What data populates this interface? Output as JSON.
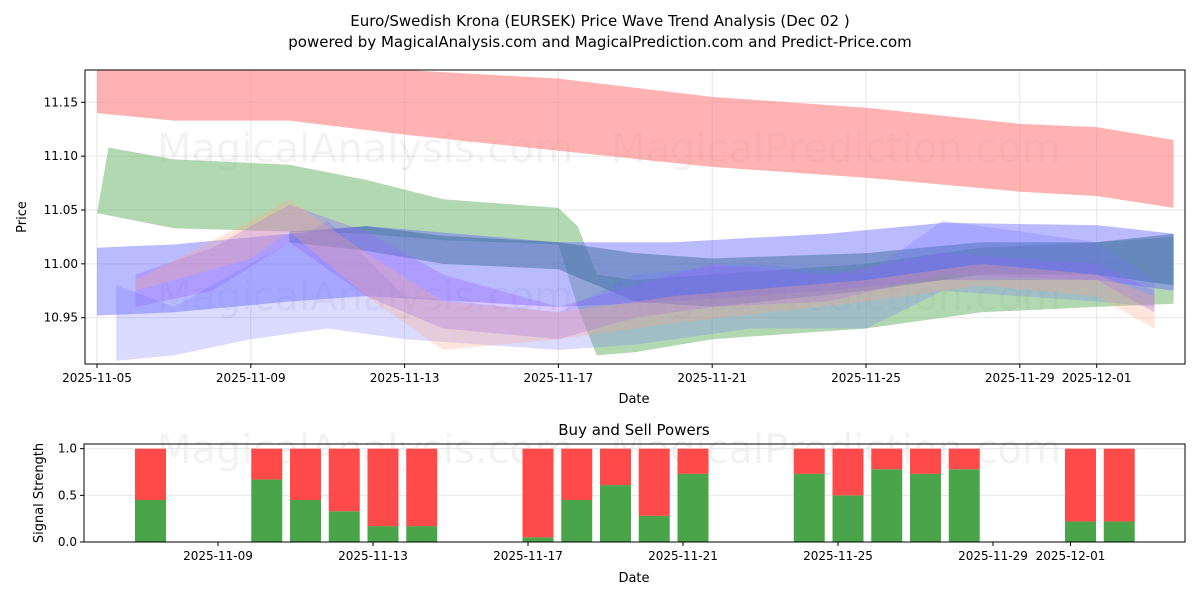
{
  "title": "Euro/Swedish Krona (EURSEK) Price Wave Trend Analysis (Dec 02 )",
  "subtitle": "powered by MagicalAnalysis.com and MagicalPrediction.com and Predict-Price.com",
  "watermarks": [
    "MagicalAnalysis.com",
    "MagicalPrediction.com"
  ],
  "chart_data": [
    {
      "type": "area",
      "title": "",
      "xlabel": "Date",
      "ylabel": "Price",
      "xlim": [
        "2025-11-04.7",
        "2025-12-03.3"
      ],
      "ylim": [
        10.907,
        11.18
      ],
      "x_ticks": [
        "2025-11-05",
        "2025-11-09",
        "2025-11-13",
        "2025-11-17",
        "2025-11-21",
        "2025-11-25",
        "2025-11-29",
        "2025-12-01"
      ],
      "y_ticks": [
        "10.95",
        "11.00",
        "11.05",
        "11.10",
        "11.15"
      ],
      "grid": true,
      "bands": [
        {
          "name": "red-band",
          "color": "#ff7f7f",
          "opacity": 0.6,
          "x": [
            "2025-11-05",
            "2025-11-07",
            "2025-11-10",
            "2025-11-13",
            "2025-11-17",
            "2025-11-21",
            "2025-11-25",
            "2025-11-29",
            "2025-12-01",
            "2025-12-03"
          ],
          "upper": [
            11.185,
            11.185,
            11.185,
            11.18,
            11.172,
            11.155,
            11.145,
            11.13,
            11.127,
            11.115
          ],
          "lower": [
            11.14,
            11.133,
            11.133,
            11.12,
            11.105,
            11.09,
            11.08,
            11.067,
            11.063,
            11.052
          ]
        },
        {
          "name": "green-band",
          "color": "#66b266",
          "opacity": 0.5,
          "x": [
            "2025-11-05",
            "2025-11-05.3",
            "2025-11-07",
            "2025-11-10",
            "2025-11-12",
            "2025-11-14",
            "2025-11-17",
            "2025-11-17.5",
            "2025-11-18",
            "2025-11-19",
            "2025-11-21",
            "2025-11-25",
            "2025-11-28",
            "2025-12-01",
            "2025-12-03"
          ],
          "upper": [
            11.047,
            11.108,
            11.097,
            11.092,
            11.078,
            11.06,
            11.052,
            11.035,
            10.99,
            10.985,
            10.99,
            11.0,
            11.015,
            11.02,
            11.025
          ],
          "lower": [
            11.047,
            11.045,
            11.033,
            11.03,
            11.028,
            11.022,
            11.018,
            10.96,
            10.915,
            10.918,
            10.93,
            10.94,
            10.955,
            10.96,
            10.963
          ]
        },
        {
          "name": "blue-band-wide",
          "color": "#6666ff",
          "opacity": 0.45,
          "x": [
            "2025-11-05",
            "2025-11-07",
            "2025-11-10",
            "2025-11-12",
            "2025-11-17",
            "2025-11-20",
            "2025-11-24",
            "2025-11-27",
            "2025-12-01",
            "2025-12-03"
          ],
          "upper": [
            11.015,
            11.018,
            11.028,
            11.035,
            11.02,
            11.02,
            11.028,
            11.038,
            11.036,
            11.028
          ],
          "lower": [
            10.952,
            10.955,
            10.965,
            10.97,
            10.96,
            10.965,
            10.975,
            10.985,
            10.985,
            10.975
          ]
        },
        {
          "name": "teal-band",
          "color": "#336699",
          "opacity": 0.45,
          "x": [
            "2025-11-10",
            "2025-11-12",
            "2025-11-14",
            "2025-11-17",
            "2025-11-19",
            "2025-11-21",
            "2025-11-25",
            "2025-11-28",
            "2025-12-01",
            "2025-12-03"
          ],
          "upper": [
            11.03,
            11.035,
            11.026,
            11.02,
            11.01,
            11.005,
            11.01,
            11.02,
            11.02,
            11.028
          ],
          "lower": [
            11.02,
            11.012,
            11.0,
            10.995,
            10.965,
            10.96,
            10.975,
            10.99,
            10.99,
            10.98
          ]
        },
        {
          "name": "purple-band",
          "color": "#9966ff",
          "opacity": 0.35,
          "x": [
            "2025-11-06",
            "2025-11-08",
            "2025-11-10",
            "2025-11-12",
            "2025-11-14",
            "2025-11-17",
            "2025-11-19",
            "2025-11-21",
            "2025-11-24",
            "2025-11-27",
            "2025-12-01",
            "2025-12-02.5"
          ],
          "upper": [
            10.99,
            11.015,
            11.055,
            11.03,
            10.99,
            10.96,
            10.98,
            11.0,
            10.99,
            11.01,
            11.0,
            10.975
          ],
          "lower": [
            10.96,
            10.975,
            11.02,
            10.97,
            10.94,
            10.93,
            10.95,
            10.96,
            10.965,
            10.99,
            10.985,
            10.955
          ]
        },
        {
          "name": "light-blue-band",
          "color": "#6f6fff",
          "opacity": 0.25,
          "x": [
            "2025-11-05.5",
            "2025-11-07",
            "2025-11-09",
            "2025-11-11",
            "2025-11-13",
            "2025-11-17",
            "2025-11-19",
            "2025-11-22",
            "2025-11-25",
            "2025-11-27",
            "2025-12-01",
            "2025-12-02.5"
          ],
          "upper": [
            10.98,
            10.96,
            11.0,
            11.04,
            10.97,
            10.955,
            10.99,
            11.0,
            10.99,
            11.04,
            11.02,
            10.985
          ],
          "lower": [
            10.91,
            10.915,
            10.93,
            10.94,
            10.93,
            10.92,
            10.925,
            10.94,
            10.94,
            10.975,
            10.965,
            10.96
          ]
        },
        {
          "name": "orange-band",
          "color": "#ffaa88",
          "opacity": 0.3,
          "x": [
            "2025-11-06",
            "2025-11-09",
            "2025-11-10",
            "2025-11-12",
            "2025-11-14",
            "2025-11-17",
            "2025-11-20",
            "2025-11-25",
            "2025-11-28",
            "2025-12-01",
            "2025-12-02.5"
          ],
          "upper": [
            10.985,
            11.04,
            11.06,
            11.01,
            10.965,
            10.955,
            10.97,
            10.985,
            11.0,
            10.99,
            10.97
          ],
          "lower": [
            10.975,
            11.005,
            11.03,
            10.97,
            10.92,
            10.93,
            10.945,
            10.965,
            10.98,
            10.97,
            10.94
          ]
        }
      ]
    },
    {
      "type": "bar",
      "title": "Buy and Sell Powers",
      "xlabel": "Date",
      "ylabel": "Signal Strength",
      "ylim": [
        0,
        1.05
      ],
      "y_ticks": [
        "0.0",
        "0.5",
        "1.0"
      ],
      "x_ticks": [
        "2025-11-09",
        "2025-11-13",
        "2025-11-17",
        "2025-11-21",
        "2025-11-25",
        "2025-11-29",
        "2025-12-01"
      ],
      "categories": [
        "2025-11-07",
        "2025-11-10",
        "2025-11-11",
        "2025-11-12",
        "2025-11-13",
        "2025-11-14",
        "2025-11-17",
        "2025-11-18",
        "2025-11-19",
        "2025-11-20",
        "2025-11-21",
        "2025-11-24",
        "2025-11-25",
        "2025-11-26",
        "2025-11-27",
        "2025-11-28",
        "2025-12-01",
        "2025-12-02"
      ],
      "series": [
        {
          "name": "Buy",
          "color": "#4aa54a",
          "values": [
            0.45,
            0.67,
            0.45,
            0.33,
            0.17,
            0.17,
            0.05,
            0.45,
            0.61,
            0.28,
            0.73,
            0.73,
            0.5,
            0.78,
            0.73,
            0.78,
            0.22,
            0.22
          ]
        },
        {
          "name": "Sell",
          "color": "#ff4a4a",
          "values": [
            0.55,
            0.33,
            0.55,
            0.67,
            0.83,
            0.83,
            0.95,
            0.55,
            0.39,
            0.72,
            0.27,
            0.27,
            0.5,
            0.22,
            0.27,
            0.22,
            0.78,
            0.78
          ]
        }
      ]
    }
  ]
}
